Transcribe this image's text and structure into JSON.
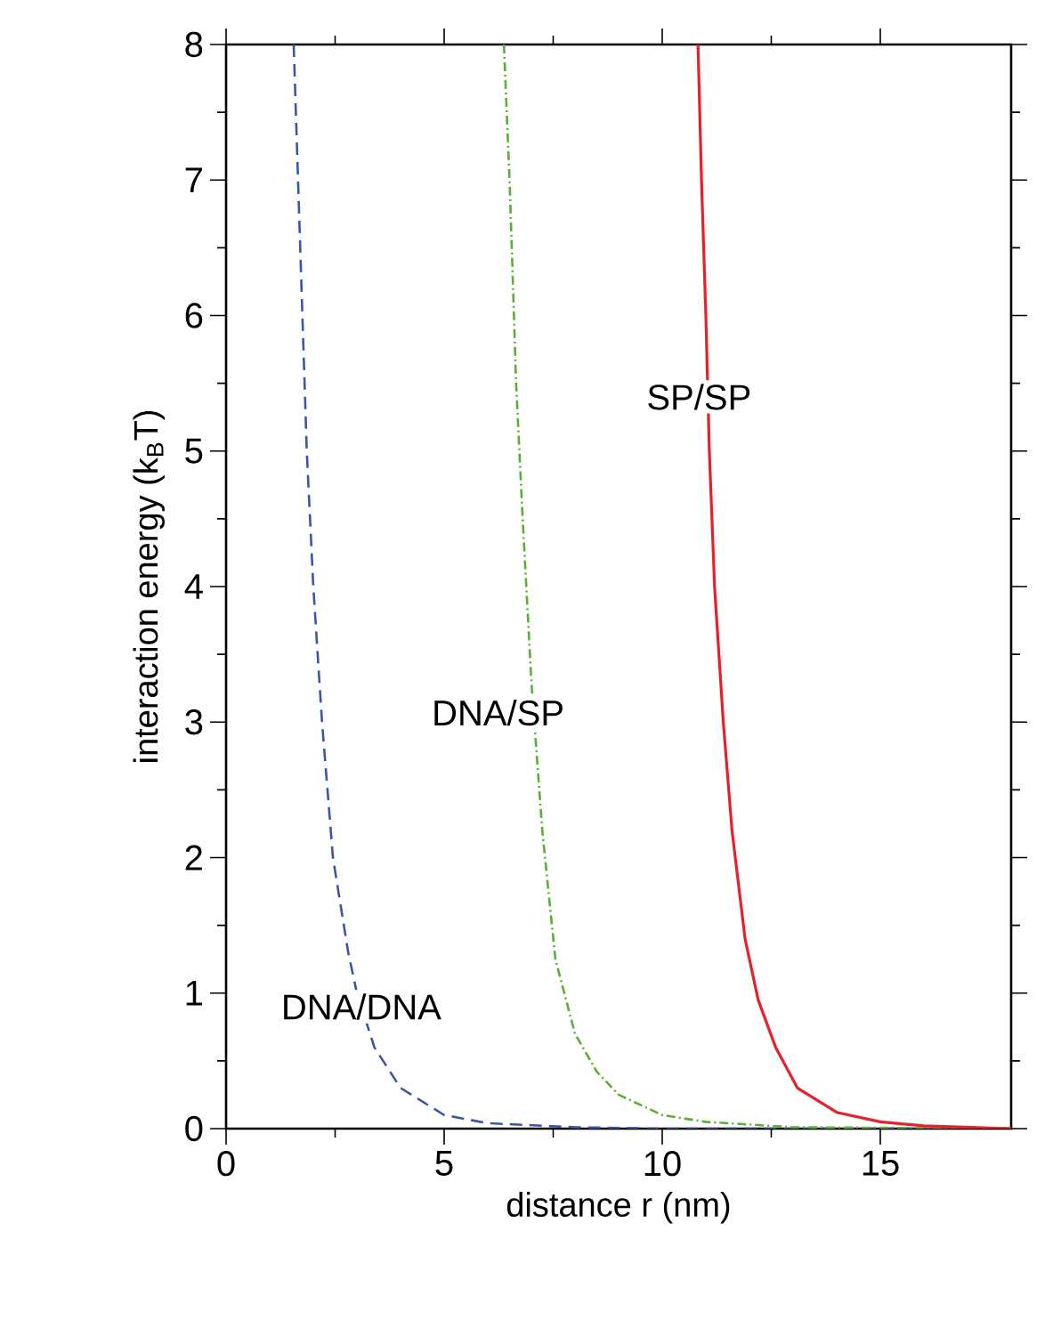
{
  "chart_data": {
    "type": "line",
    "xlabel": "distance r  (nm)",
    "ylabel": "interaction energy  (k$_{B}$T)",
    "xlim": [
      0,
      18
    ],
    "ylim": [
      0,
      8
    ],
    "xticks": [
      0,
      5,
      10,
      15
    ],
    "yticks": [
      0,
      1,
      2,
      3,
      4,
      5,
      6,
      7,
      8
    ],
    "grid": false,
    "series": [
      {
        "name": "DNA/DNA",
        "color": "#3a56a8",
        "line_style": "dashed",
        "x": [
          1.55,
          1.65,
          1.75,
          1.85,
          2.0,
          2.2,
          2.45,
          2.8,
          3.0,
          3.4,
          4.0,
          5.0,
          6.0,
          8.0,
          10.0,
          18.0
        ],
        "values": [
          8,
          7,
          6,
          5,
          4,
          3,
          2,
          1.3,
          1.0,
          0.6,
          0.3,
          0.1,
          0.04,
          0.01,
          0,
          0
        ]
      },
      {
        "name": "DNA/SP",
        "color": "#5ab034",
        "line_style": "dashdot",
        "x": [
          6.37,
          6.5,
          6.65,
          6.8,
          7.0,
          7.25,
          7.55,
          8.0,
          8.5,
          9.0,
          10.0,
          11.0,
          13.0,
          18.0
        ],
        "values": [
          8,
          7,
          5.5,
          4.5,
          3.3,
          2.2,
          1.25,
          0.7,
          0.42,
          0.25,
          0.1,
          0.05,
          0.01,
          0
        ]
      },
      {
        "name": "SP/SP",
        "color": "#e8202a",
        "line_style": "solid",
        "x": [
          10.82,
          10.9,
          11.0,
          11.08,
          11.2,
          11.4,
          11.6,
          11.9,
          12.2,
          12.6,
          13.1,
          14.0,
          15.0,
          16.0,
          18.0
        ],
        "values": [
          8,
          7,
          6,
          5,
          4,
          3,
          2.2,
          1.4,
          0.95,
          0.6,
          0.3,
          0.12,
          0.05,
          0.02,
          0
        ]
      }
    ]
  }
}
